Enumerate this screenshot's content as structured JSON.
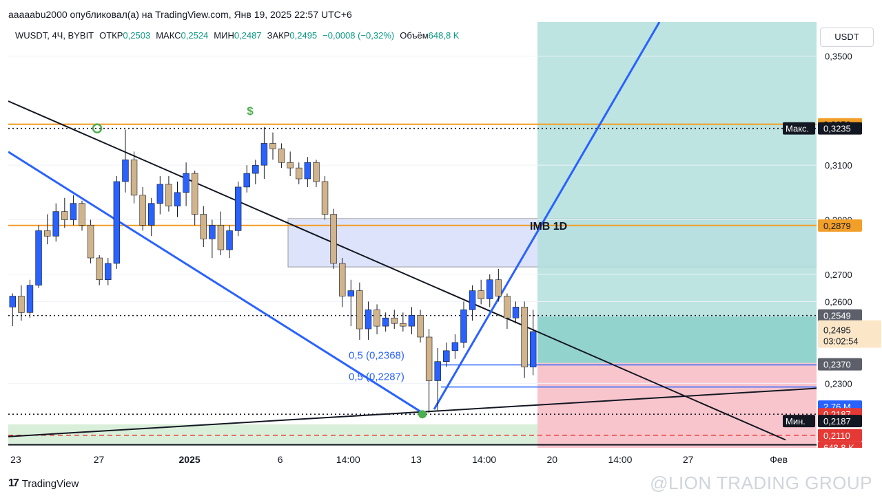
{
  "header": {
    "publish_line": "aaaaabu2000 опубликовал(а) на TradingView.com, Янв 19, 2025 22:57 UTC+6"
  },
  "legend": {
    "symbol": "WUSDT, 4Ч, BYBIT",
    "open_label": "ОТКР",
    "open": "0,2503",
    "high_label": "МАКС",
    "high": "0,2524",
    "low_label": "МИН",
    "low": "0,2487",
    "close_label": "ЗАКР",
    "close": "0,2495",
    "change": "−0,0008 (−0,32%)",
    "volume_label": "Объём",
    "volume": "648,8 K"
  },
  "axis": {
    "currency": "USDT"
  },
  "footer": {
    "brand": "TradingView",
    "watermark": "@LION TRADING GROUP"
  },
  "chart_data": {
    "type": "candlestick",
    "symbol": "WUSDT",
    "timeframe": "4Ч",
    "exchange": "BYBIT",
    "y_range": [
      0.2064,
      0.3625
    ],
    "y_ticks": [
      {
        "value": 0.35,
        "label": "0,3500"
      },
      {
        "value": 0.31,
        "label": "0,3100"
      },
      {
        "value": 0.29,
        "label": "0,2900"
      },
      {
        "value": 0.27,
        "label": "0,2700"
      },
      {
        "value": 0.26,
        "label": "0,2600"
      },
      {
        "value": 0.23,
        "label": "0,2300"
      }
    ],
    "x_range": [
      0,
      107
    ],
    "x_ticks": [
      {
        "x": 1,
        "label": "23",
        "bold": false
      },
      {
        "x": 12,
        "label": "27",
        "bold": false
      },
      {
        "x": 24,
        "label": "2025",
        "bold": true
      },
      {
        "x": 36,
        "label": "6",
        "bold": false
      },
      {
        "x": 45,
        "label": "14:00",
        "bold": false
      },
      {
        "x": 54,
        "label": "13",
        "bold": false
      },
      {
        "x": 63,
        "label": "14:00",
        "bold": false
      },
      {
        "x": 72,
        "label": "20",
        "bold": false
      },
      {
        "x": 81,
        "label": "14:00",
        "bold": false
      },
      {
        "x": 90,
        "label": "27",
        "bold": false
      },
      {
        "x": 102,
        "label": "Фев",
        "bold": false
      }
    ],
    "candles": [
      {
        "o": 0.258,
        "h": 0.263,
        "l": 0.251,
        "c": 0.262
      },
      {
        "o": 0.262,
        "h": 0.266,
        "l": 0.253,
        "c": 0.256
      },
      {
        "o": 0.256,
        "h": 0.268,
        "l": 0.254,
        "c": 0.266
      },
      {
        "o": 0.266,
        "h": 0.288,
        "l": 0.265,
        "c": 0.286
      },
      {
        "o": 0.286,
        "h": 0.292,
        "l": 0.281,
        "c": 0.284
      },
      {
        "o": 0.284,
        "h": 0.296,
        "l": 0.282,
        "c": 0.293
      },
      {
        "o": 0.293,
        "h": 0.298,
        "l": 0.287,
        "c": 0.29
      },
      {
        "o": 0.29,
        "h": 0.299,
        "l": 0.288,
        "c": 0.296
      },
      {
        "o": 0.296,
        "h": 0.297,
        "l": 0.286,
        "c": 0.288
      },
      {
        "o": 0.288,
        "h": 0.29,
        "l": 0.274,
        "c": 0.276
      },
      {
        "o": 0.276,
        "h": 0.277,
        "l": 0.266,
        "c": 0.268
      },
      {
        "o": 0.268,
        "h": 0.276,
        "l": 0.266,
        "c": 0.274
      },
      {
        "o": 0.274,
        "h": 0.306,
        "l": 0.272,
        "c": 0.304
      },
      {
        "o": 0.304,
        "h": 0.323,
        "l": 0.3,
        "c": 0.312
      },
      {
        "o": 0.312,
        "h": 0.315,
        "l": 0.296,
        "c": 0.299
      },
      {
        "o": 0.299,
        "h": 0.302,
        "l": 0.286,
        "c": 0.288
      },
      {
        "o": 0.288,
        "h": 0.298,
        "l": 0.284,
        "c": 0.296
      },
      {
        "o": 0.296,
        "h": 0.306,
        "l": 0.292,
        "c": 0.303
      },
      {
        "o": 0.303,
        "h": 0.306,
        "l": 0.293,
        "c": 0.295
      },
      {
        "o": 0.295,
        "h": 0.304,
        "l": 0.291,
        "c": 0.3
      },
      {
        "o": 0.3,
        "h": 0.311,
        "l": 0.295,
        "c": 0.307
      },
      {
        "o": 0.307,
        "h": 0.308,
        "l": 0.288,
        "c": 0.292
      },
      {
        "o": 0.292,
        "h": 0.295,
        "l": 0.28,
        "c": 0.283
      },
      {
        "o": 0.283,
        "h": 0.29,
        "l": 0.276,
        "c": 0.288
      },
      {
        "o": 0.288,
        "h": 0.293,
        "l": 0.277,
        "c": 0.279
      },
      {
        "o": 0.279,
        "h": 0.288,
        "l": 0.276,
        "c": 0.286
      },
      {
        "o": 0.286,
        "h": 0.304,
        "l": 0.284,
        "c": 0.302
      },
      {
        "o": 0.302,
        "h": 0.31,
        "l": 0.3,
        "c": 0.307
      },
      {
        "o": 0.307,
        "h": 0.312,
        "l": 0.303,
        "c": 0.31
      },
      {
        "o": 0.31,
        "h": 0.324,
        "l": 0.305,
        "c": 0.318
      },
      {
        "o": 0.318,
        "h": 0.322,
        "l": 0.312,
        "c": 0.316
      },
      {
        "o": 0.316,
        "h": 0.318,
        "l": 0.309,
        "c": 0.311
      },
      {
        "o": 0.311,
        "h": 0.315,
        "l": 0.306,
        "c": 0.309
      },
      {
        "o": 0.309,
        "h": 0.311,
        "l": 0.303,
        "c": 0.305
      },
      {
        "o": 0.305,
        "h": 0.313,
        "l": 0.302,
        "c": 0.311
      },
      {
        "o": 0.311,
        "h": 0.312,
        "l": 0.302,
        "c": 0.304
      },
      {
        "o": 0.304,
        "h": 0.306,
        "l": 0.29,
        "c": 0.292
      },
      {
        "o": 0.292,
        "h": 0.294,
        "l": 0.272,
        "c": 0.274
      },
      {
        "o": 0.274,
        "h": 0.276,
        "l": 0.258,
        "c": 0.262
      },
      {
        "o": 0.262,
        "h": 0.268,
        "l": 0.251,
        "c": 0.264
      },
      {
        "o": 0.264,
        "h": 0.267,
        "l": 0.246,
        "c": 0.25
      },
      {
        "o": 0.25,
        "h": 0.26,
        "l": 0.246,
        "c": 0.257
      },
      {
        "o": 0.257,
        "h": 0.259,
        "l": 0.248,
        "c": 0.251
      },
      {
        "o": 0.251,
        "h": 0.256,
        "l": 0.249,
        "c": 0.254
      },
      {
        "o": 0.254,
        "h": 0.257,
        "l": 0.25,
        "c": 0.252
      },
      {
        "o": 0.252,
        "h": 0.256,
        "l": 0.249,
        "c": 0.251
      },
      {
        "o": 0.251,
        "h": 0.258,
        "l": 0.248,
        "c": 0.255
      },
      {
        "o": 0.255,
        "h": 0.257,
        "l": 0.245,
        "c": 0.247
      },
      {
        "o": 0.247,
        "h": 0.25,
        "l": 0.219,
        "c": 0.231
      },
      {
        "o": 0.231,
        "h": 0.243,
        "l": 0.22,
        "c": 0.238
      },
      {
        "o": 0.238,
        "h": 0.245,
        "l": 0.236,
        "c": 0.242
      },
      {
        "o": 0.242,
        "h": 0.248,
        "l": 0.239,
        "c": 0.245
      },
      {
        "o": 0.245,
        "h": 0.26,
        "l": 0.243,
        "c": 0.257
      },
      {
        "o": 0.257,
        "h": 0.266,
        "l": 0.253,
        "c": 0.264
      },
      {
        "o": 0.264,
        "h": 0.268,
        "l": 0.259,
        "c": 0.261
      },
      {
        "o": 0.261,
        "h": 0.27,
        "l": 0.258,
        "c": 0.268
      },
      {
        "o": 0.268,
        "h": 0.272,
        "l": 0.26,
        "c": 0.262
      },
      {
        "o": 0.262,
        "h": 0.263,
        "l": 0.25,
        "c": 0.254
      },
      {
        "o": 0.254,
        "h": 0.26,
        "l": 0.252,
        "c": 0.258
      },
      {
        "o": 0.258,
        "h": 0.26,
        "l": 0.232,
        "c": 0.236
      },
      {
        "o": 0.236,
        "h": 0.257,
        "l": 0.233,
        "c": 0.249
      }
    ],
    "volume": "648,8 K",
    "series_color_up": "#2962ff",
    "series_color_down": "#d1b48c",
    "zones": [
      {
        "name": "IMB 1D",
        "y1": 0.2727,
        "y2": 0.2904,
        "color": "#d6defa",
        "border": "#9598a1"
      },
      {
        "name": "target",
        "y1": 0.2545,
        "y2": 0.3625,
        "color": "#b2dfdb"
      },
      {
        "name": "target-inner",
        "y1": 0.2375,
        "y2": 0.2545,
        "color": "#80cbc4"
      },
      {
        "name": "stop",
        "y1": 0.2064,
        "y2": 0.2375,
        "color": "#f8bbc4"
      },
      {
        "name": "support",
        "y1": 0.2075,
        "y2": 0.215,
        "color": "#d4ecd4"
      }
    ],
    "levels": [
      {
        "price": 0.3235,
        "color": "#131722",
        "style": "dotted"
      },
      {
        "price": 0.325,
        "color": "#f29f2a",
        "style": "solid"
      },
      {
        "price": 0.2879,
        "color": "#f29f2a",
        "style": "solid"
      },
      {
        "price": 0.2549,
        "color": "#131722",
        "style": "dotted"
      },
      {
        "price": 0.2187,
        "color": "#131722",
        "style": "dotted"
      },
      {
        "price": 0.211,
        "color": "#e53935",
        "style": "dashed"
      }
    ],
    "fib_labels": [
      {
        "text": "0,5 (0,2368)",
        "price": 0.2368
      },
      {
        "text": "0,5 (0,2287)",
        "price": 0.2287
      }
    ],
    "imb_label": "IMB 1D",
    "price_labels": [
      {
        "text": "0,3250",
        "bg": "#f29f2a",
        "fg": "#131722",
        "price": 0.325
      },
      {
        "text": "0,3235",
        "bg": "#131722",
        "fg": "#ffffff",
        "price": 0.3235,
        "tag": "Макс."
      },
      {
        "text": "0,2879",
        "bg": "#f29f2a",
        "fg": "#131722",
        "price": 0.2879
      },
      {
        "text": "0,2549",
        "bg": "#5d606b",
        "fg": "#ffffff",
        "price": 0.2549
      },
      {
        "text": "0,2495",
        "bg": "#2962ff",
        "fg": "#ffffff",
        "price": 0.2495
      },
      {
        "text": "0,2370",
        "bg": "#5d606b",
        "fg": "#ffffff",
        "price": 0.237
      },
      {
        "text": "2,76 M",
        "bg": "#2962ff",
        "fg": "#ffffff",
        "price": 0.2215
      },
      {
        "text": "0,2187",
        "bg": "#e53935",
        "fg": "#ffffff",
        "price": 0.2187
      },
      {
        "text": "0,2187",
        "bg": "#131722",
        "fg": "#ffffff",
        "price": 0.2162,
        "tag": "Мин."
      },
      {
        "text": "0,2110",
        "bg": "#e53935",
        "fg": "#ffffff",
        "price": 0.211
      },
      {
        "text": "648,8 K",
        "bg": "#e53935",
        "fg": "#ffffff",
        "price": 0.2065
      }
    ],
    "last_price": {
      "text": "0,2495",
      "countdown": "03:02:54",
      "price": 0.2471
    }
  }
}
